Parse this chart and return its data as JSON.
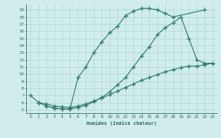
{
  "line1_x": [
    0,
    1,
    2,
    3,
    4,
    5,
    6,
    7,
    8,
    9,
    10,
    11,
    12,
    13,
    14,
    15,
    16,
    17,
    18,
    22
  ],
  "line1_y": [
    7,
    6,
    5.5,
    5.2,
    5.1,
    5.1,
    9.5,
    11.0,
    13.0,
    14.5,
    15.8,
    16.7,
    18.2,
    18.8,
    19.2,
    19.2,
    19.0,
    18.5,
    18.0,
    19.0
  ],
  "line2_x": [
    2,
    3,
    4,
    5,
    6,
    7,
    8,
    9,
    10,
    11,
    12,
    13,
    14,
    15,
    16,
    17,
    18,
    19,
    20,
    21,
    22,
    23
  ],
  "line2_y": [
    5.5,
    5.2,
    5.1,
    5.1,
    5.3,
    5.6,
    6.1,
    6.7,
    7.5,
    8.5,
    9.5,
    11.0,
    12.5,
    13.8,
    15.5,
    16.5,
    17.2,
    18.0,
    15.0,
    12.0,
    11.5,
    11.5
  ],
  "line3_x": [
    1,
    2,
    3,
    4,
    5,
    6,
    7,
    8,
    9,
    10,
    11,
    12,
    13,
    14,
    15,
    16,
    17,
    18,
    19,
    20,
    21,
    22,
    23
  ],
  "line3_y": [
    6.0,
    5.8,
    5.5,
    5.4,
    5.3,
    5.5,
    5.8,
    6.2,
    6.6,
    7.1,
    7.6,
    8.1,
    8.6,
    9.1,
    9.5,
    9.9,
    10.3,
    10.6,
    10.9,
    11.1,
    11.1,
    11.3,
    11.5
  ],
  "color": "#2e7d6e",
  "bg_color": "#d0ecec",
  "grid_color": "#b0d4d4",
  "xlabel": "Humidex (Indice chaleur)",
  "xlim": [
    -0.5,
    23.5
  ],
  "ylim": [
    4.5,
    19.8
  ],
  "xticks": [
    0,
    1,
    2,
    3,
    4,
    5,
    6,
    7,
    8,
    9,
    10,
    11,
    12,
    13,
    14,
    15,
    16,
    17,
    18,
    19,
    20,
    21,
    22,
    23
  ],
  "yticks": [
    5,
    6,
    7,
    8,
    9,
    10,
    11,
    12,
    13,
    14,
    15,
    16,
    17,
    18,
    19
  ],
  "font_color": "#2e5f5f",
  "marker": "+",
  "markersize": 4,
  "linewidth": 0.9
}
